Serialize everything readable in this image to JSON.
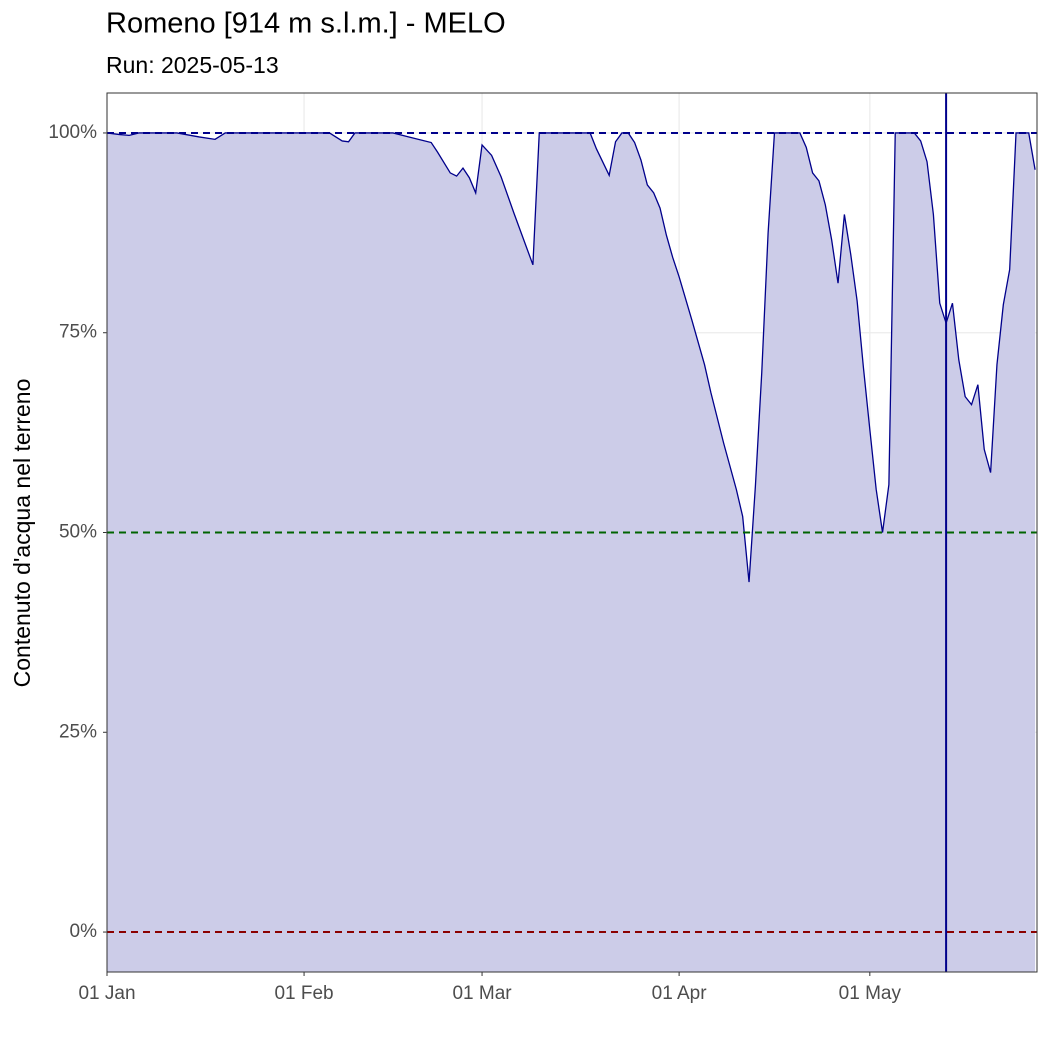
{
  "chart_data": {
    "type": "area",
    "title": "Romeno [914 m s.l.m.] - MELO",
    "subtitle": "Run: 2025-05-13",
    "y_label": "Contenuto d'acqua nel terreno",
    "x": [
      0,
      2,
      3.5,
      5,
      11,
      14.5,
      17,
      18.6,
      21,
      35,
      37,
      38,
      39,
      45,
      47.5,
      49,
      51,
      52,
      54,
      55,
      56,
      57,
      58,
      59,
      60.5,
      62,
      64,
      67,
      68,
      76,
      77,
      79,
      80,
      81,
      82,
      83,
      84,
      85,
      86,
      87,
      88,
      89,
      90,
      92,
      94,
      95,
      97,
      99,
      100,
      101,
      102,
      103,
      104,
      105,
      109,
      110,
      111,
      112,
      113,
      114,
      115,
      116,
      117,
      118,
      119,
      120,
      121,
      122,
      123,
      124,
      127,
      128,
      129,
      130,
      131,
      132,
      133,
      134,
      135,
      136,
      137,
      138,
      139,
      140,
      141,
      142,
      143,
      145,
      146
    ],
    "series": [
      {
        "color": "#00008B",
        "fill": "#CCCCE8",
        "values": [
          100,
          99.8,
          99.7,
          100,
          100,
          99.5,
          99.2,
          100,
          100,
          100,
          99,
          98.9,
          100,
          100,
          99.5,
          99.2,
          98.8,
          97.6,
          95,
          94.6,
          95.6,
          94.4,
          92.5,
          98.5,
          97.2,
          94.5,
          90,
          83.5,
          100,
          100,
          98,
          94.7,
          98.9,
          100,
          100,
          98.8,
          96.6,
          93.5,
          92.5,
          90.6,
          87.2,
          84.4,
          82,
          76.6,
          71,
          67.5,
          61.2,
          55.4,
          52,
          43.8,
          55.8,
          70,
          87.5,
          100,
          100,
          98.2,
          95,
          94,
          91,
          86.6,
          81.2,
          89.8,
          84.8,
          79,
          70.6,
          62.9,
          55.4,
          50,
          56,
          100,
          100,
          99,
          96.4,
          89.8,
          78.7,
          76.2,
          78.7,
          71.6,
          67,
          66,
          68.5,
          60.4,
          57.5,
          71,
          78.5,
          82.9,
          100,
          100,
          95.4
        ]
      }
    ],
    "hlines": [
      {
        "value": 100,
        "color": "#00008B"
      },
      {
        "value": 50,
        "color": "#006400"
      },
      {
        "value": 0,
        "color": "#8B0000"
      }
    ],
    "vline": {
      "value": 132,
      "color": "#00008B"
    },
    "xlim": [
      0,
      146.3
    ],
    "xticks": [
      {
        "value": 0,
        "label": "01 Jan"
      },
      {
        "value": 31,
        "label": "01 Feb"
      },
      {
        "value": 59,
        "label": "01 Mar"
      },
      {
        "value": 90,
        "label": "01 Apr"
      },
      {
        "value": 120,
        "label": "01 May"
      }
    ],
    "ylim": [
      -5,
      105
    ],
    "yticks": [
      {
        "value": 0,
        "label": "0%"
      },
      {
        "value": 25,
        "label": "25%"
      },
      {
        "value": 50,
        "label": "50%"
      },
      {
        "value": 75,
        "label": "75%"
      },
      {
        "value": 100,
        "label": "100%"
      }
    ],
    "grid": true
  }
}
